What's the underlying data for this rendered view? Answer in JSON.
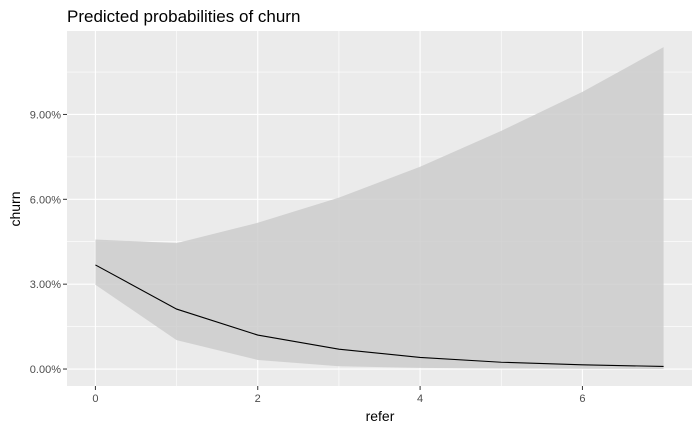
{
  "chart_data": {
    "type": "line",
    "title": "Predicted probabilities of churn",
    "xlabel": "refer",
    "ylabel": "churn",
    "xlim": [
      -0.35,
      7.35
    ],
    "ylim": [
      -0.006,
      0.1195
    ],
    "x_ticks": [
      {
        "value": 0,
        "label": "0"
      },
      {
        "value": 2,
        "label": "2"
      },
      {
        "value": 4,
        "label": "4"
      },
      {
        "value": 6,
        "label": "6"
      }
    ],
    "y_ticks": [
      {
        "value": 0.0,
        "label": "0.00%"
      },
      {
        "value": 0.03,
        "label": "3.00%"
      },
      {
        "value": 0.06,
        "label": "6.00%"
      },
      {
        "value": 0.09,
        "label": "9.00%"
      }
    ],
    "grid": true,
    "series": [
      {
        "x": [
          0,
          1,
          2,
          3,
          4,
          5,
          6,
          7
        ],
        "y": [
          0.0368,
          0.0212,
          0.012,
          0.007,
          0.0041,
          0.0024,
          0.0015,
          0.0009
        ],
        "lower": [
          0.0298,
          0.0102,
          0.0032,
          0.001,
          0.0004,
          0.0002,
          0.0001,
          0.0
        ],
        "upper": [
          0.0458,
          0.0445,
          0.0517,
          0.0606,
          0.0715,
          0.0842,
          0.098,
          0.1138
        ]
      }
    ],
    "colors": {
      "panel": "#ebebeb",
      "grid_major": "#ffffff",
      "ribbon": "#cccccc",
      "line": "#000000"
    }
  }
}
